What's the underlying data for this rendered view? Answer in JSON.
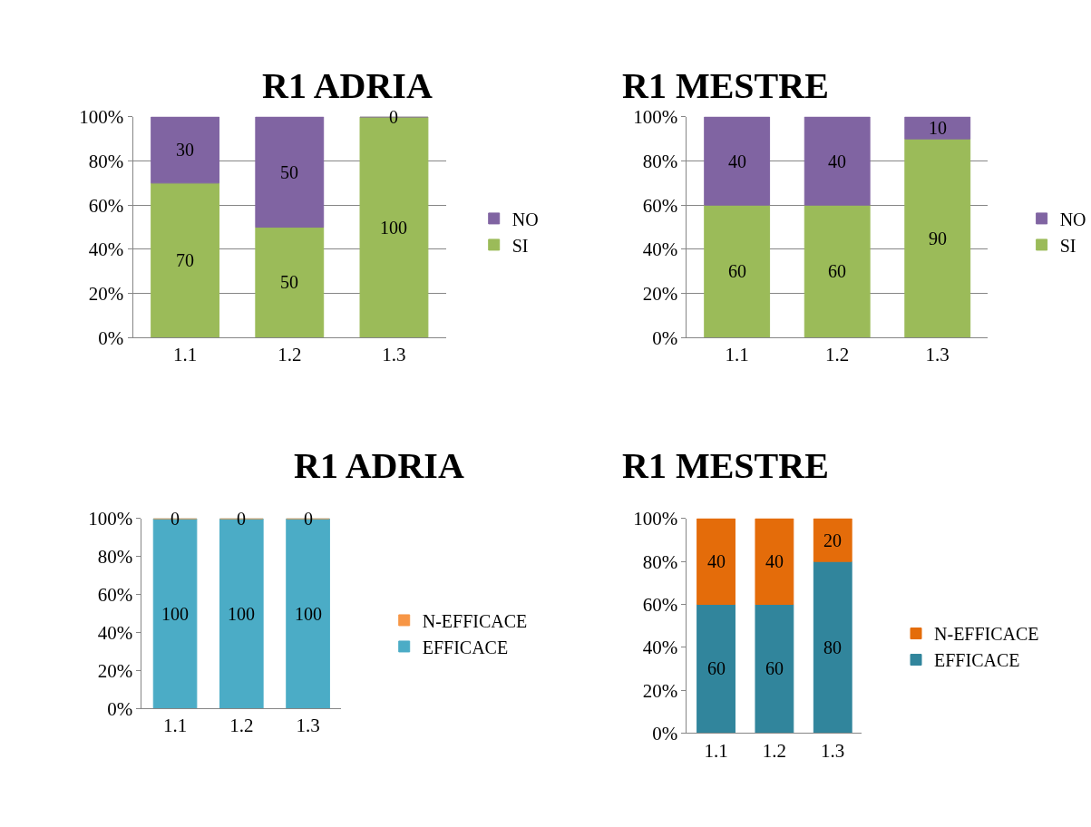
{
  "chart_data": [
    {
      "type": "bar",
      "title": "R1 ADRIA",
      "categories": [
        "1.1",
        "1.2",
        "1.3"
      ],
      "stacked": true,
      "ylim": [
        0,
        100
      ],
      "yticks": [
        {
          "value": 0,
          "label": "0%"
        },
        {
          "value": 20,
          "label": "20%"
        },
        {
          "value": 40,
          "label": "40%"
        },
        {
          "value": 60,
          "label": "60%"
        },
        {
          "value": 80,
          "label": "80%"
        },
        {
          "value": 100,
          "label": "100%"
        }
      ],
      "grid": "y",
      "legend": "right",
      "data_labels": true,
      "series": [
        {
          "name": "SI",
          "color": "#9bbb59",
          "values": [
            70,
            50,
            100
          ]
        },
        {
          "name": "NO",
          "color": "#8064a2",
          "values": [
            30,
            50,
            0
          ]
        }
      ]
    },
    {
      "type": "bar",
      "title": "R1 MESTRE",
      "categories": [
        "1.1",
        "1.2",
        "1.3"
      ],
      "stacked": true,
      "ylim": [
        0,
        100
      ],
      "yticks": [
        {
          "value": 0,
          "label": "0%"
        },
        {
          "value": 20,
          "label": "20%"
        },
        {
          "value": 40,
          "label": "40%"
        },
        {
          "value": 60,
          "label": "60%"
        },
        {
          "value": 80,
          "label": "80%"
        },
        {
          "value": 100,
          "label": "100%"
        }
      ],
      "grid": "y",
      "legend": "right",
      "data_labels": true,
      "series": [
        {
          "name": "SI",
          "color": "#9bbb59",
          "values": [
            60,
            60,
            90
          ]
        },
        {
          "name": "NO",
          "color": "#8064a2",
          "values": [
            40,
            40,
            10
          ]
        }
      ]
    },
    {
      "type": "bar",
      "title": "R1 ADRIA",
      "categories": [
        "1.1",
        "1.2",
        "1.3"
      ],
      "stacked": true,
      "ylim": [
        0,
        100
      ],
      "yticks": [
        {
          "value": 0,
          "label": "0%"
        },
        {
          "value": 20,
          "label": "20%"
        },
        {
          "value": 40,
          "label": "40%"
        },
        {
          "value": 60,
          "label": "60%"
        },
        {
          "value": 80,
          "label": "80%"
        },
        {
          "value": 100,
          "label": "100%"
        }
      ],
      "grid": false,
      "legend": "right",
      "data_labels": true,
      "series": [
        {
          "name": "EFFICACE",
          "color": "#4bacc6",
          "values": [
            100,
            100,
            100
          ]
        },
        {
          "name": "N-EFFICACE",
          "color": "#f79646",
          "values": [
            0,
            0,
            0
          ]
        }
      ]
    },
    {
      "type": "bar",
      "title": "R1 MESTRE",
      "categories": [
        "1.1",
        "1.2",
        "1.3"
      ],
      "stacked": true,
      "ylim": [
        0,
        100
      ],
      "yticks": [
        {
          "value": 0,
          "label": "0%"
        },
        {
          "value": 20,
          "label": "20%"
        },
        {
          "value": 40,
          "label": "40%"
        },
        {
          "value": 60,
          "label": "60%"
        },
        {
          "value": 80,
          "label": "80%"
        },
        {
          "value": 100,
          "label": "100%"
        }
      ],
      "grid": false,
      "legend": "right",
      "data_labels": true,
      "series": [
        {
          "name": "EFFICACE",
          "color": "#31859c",
          "values": [
            60,
            60,
            80
          ]
        },
        {
          "name": "N-EFFICACE",
          "color": "#e46c0a",
          "values": [
            40,
            40,
            20
          ]
        }
      ]
    }
  ]
}
